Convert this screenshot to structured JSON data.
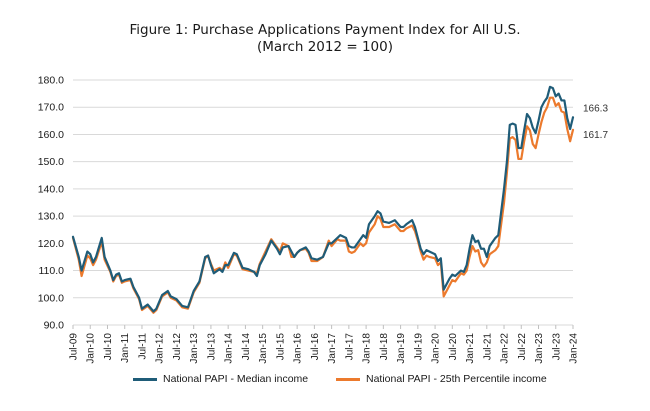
{
  "chart_data": {
    "type": "line",
    "title": "Figure 1: Purchase Applications Payment Index for All U.S.",
    "subtitle": "(March 2012 = 100)",
    "ylim": [
      90,
      180
    ],
    "y_ticks": [
      "180.0",
      "170.0",
      "160.0",
      "150.0",
      "140.0",
      "130.0",
      "120.0",
      "110.0",
      "100.0",
      "90.0"
    ],
    "x_ticks": [
      "Jul-09",
      "Jan-10",
      "Jul-10",
      "Jan-11",
      "Jul-11",
      "Jan-12",
      "Jul-12",
      "Jan-13",
      "Jul-13",
      "Jan-14",
      "Jul-14",
      "Jan-15",
      "Jul-15",
      "Jan-16",
      "Jul-16",
      "Jan-17",
      "Jul-17",
      "Jan-18",
      "Jul-18",
      "Jan-19",
      "Jul-19",
      "Jan-20",
      "Jul-20",
      "Jan-21",
      "Jul-21",
      "Jan-22",
      "Jul-22",
      "Jan-23",
      "Jul-23",
      "Jan-24"
    ],
    "grid": true,
    "legend": "bottom",
    "series": [
      {
        "name": "National PAPI - Median income",
        "color": "#1f5c78",
        "end_label": "166.3",
        "points": [
          [
            0,
            122.4
          ],
          [
            2,
            115.0
          ],
          [
            3,
            110.0
          ],
          [
            5,
            117.0
          ],
          [
            6,
            116.0
          ],
          [
            7,
            113.0
          ],
          [
            8,
            115.0
          ],
          [
            10,
            122.0
          ],
          [
            11,
            115.0
          ],
          [
            13,
            110.0
          ],
          [
            14,
            106.5
          ],
          [
            15,
            108.5
          ],
          [
            16,
            109.0
          ],
          [
            17,
            106.0
          ],
          [
            18,
            106.5
          ],
          [
            20,
            107.0
          ],
          [
            21,
            104.0
          ],
          [
            23,
            100.0
          ],
          [
            24,
            96.0
          ],
          [
            26,
            97.5
          ],
          [
            28,
            95.0
          ],
          [
            29,
            96.0
          ],
          [
            31,
            101.0
          ],
          [
            33,
            102.5
          ],
          [
            34,
            100.5
          ],
          [
            36,
            99.5
          ],
          [
            38,
            97.0
          ],
          [
            40,
            96.5
          ],
          [
            42,
            102.5
          ],
          [
            44,
            106.0
          ],
          [
            46,
            115.0
          ],
          [
            47,
            115.5
          ],
          [
            48,
            112.0
          ],
          [
            49,
            109.0
          ],
          [
            51,
            110.5
          ],
          [
            52,
            109.5
          ],
          [
            53,
            112.0
          ],
          [
            54,
            112.0
          ],
          [
            56,
            116.5
          ],
          [
            57,
            116.0
          ],
          [
            59,
            111.0
          ],
          [
            61,
            110.5
          ],
          [
            63,
            109.5
          ],
          [
            64,
            108.0
          ],
          [
            65,
            112.0
          ],
          [
            67,
            116.0
          ],
          [
            69,
            121.0
          ],
          [
            71,
            118.0
          ],
          [
            72,
            116.0
          ],
          [
            73,
            118.5
          ],
          [
            75,
            119.0
          ],
          [
            76,
            117.0
          ],
          [
            77,
            115.0
          ],
          [
            78,
            116.5
          ],
          [
            79,
            117.5
          ],
          [
            81,
            118.5
          ],
          [
            82,
            117.0
          ],
          [
            83,
            114.5
          ],
          [
            85,
            114.0
          ],
          [
            87,
            115.0
          ],
          [
            89,
            120.0
          ],
          [
            90,
            120.0
          ],
          [
            92,
            122.0
          ],
          [
            93,
            123.0
          ],
          [
            95,
            122.0
          ],
          [
            96,
            119.0
          ],
          [
            97,
            118.5
          ],
          [
            98,
            118.5
          ],
          [
            100,
            121.5
          ],
          [
            101,
            123.0
          ],
          [
            102,
            122.0
          ],
          [
            103,
            127.0
          ],
          [
            105,
            130.0
          ],
          [
            106,
            131.8
          ],
          [
            107,
            131.0
          ],
          [
            108,
            128.0
          ],
          [
            110,
            127.5
          ],
          [
            111,
            128.0
          ],
          [
            112,
            128.5
          ],
          [
            114,
            126.0
          ],
          [
            115,
            126.0
          ],
          [
            116,
            127.0
          ],
          [
            118,
            128.5
          ],
          [
            119,
            126.0
          ],
          [
            120,
            122.0
          ],
          [
            121,
            118.0
          ],
          [
            122,
            116.0
          ],
          [
            123,
            117.5
          ],
          [
            124,
            117.0
          ],
          [
            126,
            116.0
          ],
          [
            127,
            113.5
          ],
          [
            128,
            114.5
          ],
          [
            129,
            103.0
          ],
          [
            131,
            107.0
          ],
          [
            132,
            108.5
          ],
          [
            133,
            108.0
          ],
          [
            135,
            110.0
          ],
          [
            136,
            109.5
          ],
          [
            137,
            112.0
          ],
          [
            138,
            118.0
          ],
          [
            139,
            123.0
          ],
          [
            140,
            120.5
          ],
          [
            141,
            121.0
          ],
          [
            142,
            118.0
          ],
          [
            143,
            118.0
          ],
          [
            144,
            115.0
          ],
          [
            145,
            119.0
          ],
          [
            147,
            122.0
          ],
          [
            148,
            123.0
          ],
          [
            150,
            140.0
          ],
          [
            151,
            150.0
          ],
          [
            152,
            163.5
          ],
          [
            153,
            164.0
          ],
          [
            154,
            163.5
          ],
          [
            155,
            155.0
          ],
          [
            156,
            155.0
          ],
          [
            157,
            161.5
          ],
          [
            158,
            167.5
          ],
          [
            159,
            166.0
          ],
          [
            160,
            162.5
          ],
          [
            161,
            160.5
          ],
          [
            162,
            165.0
          ],
          [
            163,
            170.0
          ],
          [
            164,
            172.0
          ],
          [
            165,
            173.5
          ],
          [
            166,
            177.5
          ],
          [
            167,
            177.0
          ],
          [
            168,
            174.0
          ],
          [
            169,
            175.0
          ],
          [
            170,
            172.5
          ],
          [
            171,
            172.5
          ],
          [
            172,
            166.0
          ],
          [
            173,
            162.0
          ],
          [
            174,
            166.3
          ]
        ]
      },
      {
        "name": "National PAPI - 25th Percentile income",
        "color": "#ec7a2d",
        "end_label": "161.7",
        "points": [
          [
            0,
            122.0
          ],
          [
            2,
            114.0
          ],
          [
            3,
            108.0
          ],
          [
            5,
            115.5
          ],
          [
            6,
            114.5
          ],
          [
            7,
            112.0
          ],
          [
            8,
            114.0
          ],
          [
            10,
            120.5
          ],
          [
            11,
            114.0
          ],
          [
            13,
            109.5
          ],
          [
            14,
            106.0
          ],
          [
            15,
            108.0
          ],
          [
            16,
            108.5
          ],
          [
            17,
            105.5
          ],
          [
            18,
            106.0
          ],
          [
            20,
            106.5
          ],
          [
            21,
            103.5
          ],
          [
            23,
            99.5
          ],
          [
            24,
            95.5
          ],
          [
            26,
            97.0
          ],
          [
            28,
            94.5
          ],
          [
            29,
            95.5
          ],
          [
            31,
            100.5
          ],
          [
            33,
            102.0
          ],
          [
            34,
            100.0
          ],
          [
            36,
            99.0
          ],
          [
            38,
            96.5
          ],
          [
            40,
            96.0
          ],
          [
            42,
            102.0
          ],
          [
            44,
            105.5
          ],
          [
            46,
            114.5
          ],
          [
            47,
            115.5
          ],
          [
            48,
            112.5
          ],
          [
            49,
            110.0
          ],
          [
            51,
            111.0
          ],
          [
            52,
            110.0
          ],
          [
            53,
            113.0
          ],
          [
            54,
            111.0
          ],
          [
            56,
            116.0
          ],
          [
            57,
            115.5
          ],
          [
            59,
            110.5
          ],
          [
            61,
            110.0
          ],
          [
            63,
            109.5
          ],
          [
            64,
            109.0
          ],
          [
            65,
            112.5
          ],
          [
            67,
            117.0
          ],
          [
            69,
            121.5
          ],
          [
            71,
            118.5
          ],
          [
            72,
            117.0
          ],
          [
            73,
            120.0
          ],
          [
            75,
            119.0
          ],
          [
            76,
            115.0
          ],
          [
            77,
            115.0
          ],
          [
            78,
            116.5
          ],
          [
            79,
            117.5
          ],
          [
            81,
            118.0
          ],
          [
            82,
            116.5
          ],
          [
            83,
            113.5
          ],
          [
            85,
            113.5
          ],
          [
            87,
            115.0
          ],
          [
            89,
            121.0
          ],
          [
            90,
            119.0
          ],
          [
            92,
            121.5
          ],
          [
            93,
            121.0
          ],
          [
            95,
            121.0
          ],
          [
            96,
            117.0
          ],
          [
            97,
            116.5
          ],
          [
            98,
            117.0
          ],
          [
            100,
            120.0
          ],
          [
            101,
            119.0
          ],
          [
            102,
            120.0
          ],
          [
            103,
            124.0
          ],
          [
            105,
            127.0
          ],
          [
            106,
            130.0
          ],
          [
            107,
            129.0
          ],
          [
            108,
            126.0
          ],
          [
            110,
            126.0
          ],
          [
            111,
            126.5
          ],
          [
            112,
            127.0
          ],
          [
            114,
            124.5
          ],
          [
            115,
            124.5
          ],
          [
            116,
            125.5
          ],
          [
            118,
            126.5
          ],
          [
            119,
            124.5
          ],
          [
            120,
            121.0
          ],
          [
            121,
            117.0
          ],
          [
            122,
            114.0
          ],
          [
            123,
            115.5
          ],
          [
            124,
            115.0
          ],
          [
            126,
            114.5
          ],
          [
            127,
            112.0
          ],
          [
            128,
            113.0
          ],
          [
            129,
            100.5
          ],
          [
            131,
            104.5
          ],
          [
            132,
            106.5
          ],
          [
            133,
            106.0
          ],
          [
            135,
            109.0
          ],
          [
            136,
            108.5
          ],
          [
            137,
            110.0
          ],
          [
            138,
            115.0
          ],
          [
            139,
            119.0
          ],
          [
            140,
            117.0
          ],
          [
            141,
            117.5
          ],
          [
            142,
            113.0
          ],
          [
            143,
            111.5
          ],
          [
            144,
            113.0
          ],
          [
            145,
            116.0
          ],
          [
            147,
            117.5
          ],
          [
            148,
            119.0
          ],
          [
            150,
            135.0
          ],
          [
            151,
            146.0
          ],
          [
            152,
            158.5
          ],
          [
            153,
            159.0
          ],
          [
            154,
            158.0
          ],
          [
            155,
            151.0
          ],
          [
            156,
            151.0
          ],
          [
            157,
            157.5
          ],
          [
            158,
            163.0
          ],
          [
            159,
            161.5
          ],
          [
            160,
            156.5
          ],
          [
            161,
            155.0
          ],
          [
            162,
            160.0
          ],
          [
            163,
            164.5
          ],
          [
            164,
            168.0
          ],
          [
            165,
            170.0
          ],
          [
            166,
            173.5
          ],
          [
            167,
            173.5
          ],
          [
            168,
            170.5
          ],
          [
            169,
            171.5
          ],
          [
            170,
            168.5
          ],
          [
            171,
            168.0
          ],
          [
            172,
            162.0
          ],
          [
            173,
            157.5
          ],
          [
            174,
            161.7
          ]
        ]
      }
    ]
  }
}
